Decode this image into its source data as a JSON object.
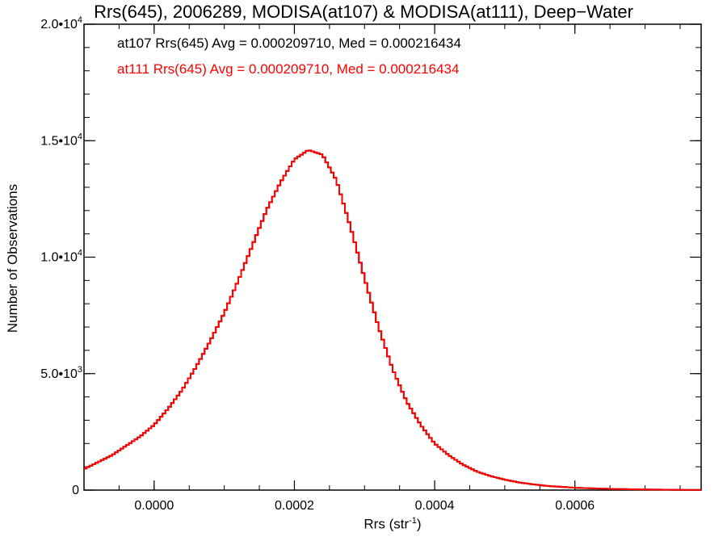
{
  "chart_data": {
    "type": "line",
    "title": "Rrs(645), 2006289, MODISA(at107) & MODISA(at111), Deep−Water",
    "xlabel_main": "Rrs (str",
    "xlabel_sup": "-1",
    "xlabel_end": ")",
    "ylabel": "Number of Observations",
    "xlim": [
      -0.0001,
      0.00078
    ],
    "ylim": [
      0,
      20000
    ],
    "x_ticks": [
      {
        "value": 0.0,
        "label": "0.0000"
      },
      {
        "value": 0.0002,
        "label": "0.0002"
      },
      {
        "value": 0.0004,
        "label": "0.0004"
      },
      {
        "value": 0.0006,
        "label": "0.0006"
      }
    ],
    "y_ticks": [
      {
        "value": 0,
        "label": "0",
        "sup": ""
      },
      {
        "value": 5000,
        "label": "5.0•10",
        "sup": "3"
      },
      {
        "value": 10000,
        "label": "1.0•10",
        "sup": "4"
      },
      {
        "value": 15000,
        "label": "1.5•10",
        "sup": "4"
      },
      {
        "value": 20000,
        "label": "2.0•10",
        "sup": "4"
      }
    ],
    "annotations": [
      {
        "text": "at107 Rrs(645) Avg = 0.000209710, Med = 0.000216434",
        "color": "#000000"
      },
      {
        "text": "at111 Rrs(645) Avg = 0.000209710, Med = 0.000216434",
        "color": "#ff0000"
      }
    ],
    "series": [
      {
        "name": "at107",
        "color": "#000000",
        "x": [
          -0.0001,
          -8e-05,
          -6e-05,
          -4e-05,
          -2e-05,
          0.0,
          2e-05,
          4e-05,
          6e-05,
          8e-05,
          0.0001,
          0.00012,
          0.00014,
          0.00016,
          0.00018,
          0.0002,
          0.00022,
          0.00024,
          0.00026,
          0.00028,
          0.0003,
          0.00032,
          0.00034,
          0.00036,
          0.00038,
          0.0004,
          0.00042,
          0.00044,
          0.00046,
          0.00048,
          0.0005,
          0.00052,
          0.00054,
          0.00056,
          0.00058,
          0.0006,
          0.00062,
          0.00064,
          0.00066,
          0.00068,
          0.0007,
          0.00072,
          0.00074,
          0.00076,
          0.00078
        ],
        "y": [
          900,
          1200,
          1500,
          1900,
          2300,
          2800,
          3500,
          4300,
          5300,
          6400,
          7600,
          9000,
          10500,
          12000,
          13200,
          14200,
          14600,
          14400,
          13300,
          11300,
          9100,
          7000,
          5200,
          3800,
          2800,
          2000,
          1500,
          1100,
          800,
          600,
          450,
          330,
          250,
          180,
          140,
          100,
          80,
          60,
          45,
          35,
          25,
          20,
          15,
          10,
          8
        ]
      },
      {
        "name": "at111",
        "color": "#ff0000",
        "x": [
          -0.0001,
          -8e-05,
          -6e-05,
          -4e-05,
          -2e-05,
          0.0,
          2e-05,
          4e-05,
          6e-05,
          8e-05,
          0.0001,
          0.00012,
          0.00014,
          0.00016,
          0.00018,
          0.0002,
          0.00022,
          0.00024,
          0.00026,
          0.00028,
          0.0003,
          0.00032,
          0.00034,
          0.00036,
          0.00038,
          0.0004,
          0.00042,
          0.00044,
          0.00046,
          0.00048,
          0.0005,
          0.00052,
          0.00054,
          0.00056,
          0.00058,
          0.0006,
          0.00062,
          0.00064,
          0.00066,
          0.00068,
          0.0007,
          0.00072,
          0.00074,
          0.00076,
          0.00078
        ],
        "y": [
          900,
          1200,
          1500,
          1900,
          2300,
          2800,
          3500,
          4300,
          5300,
          6400,
          7600,
          9000,
          10500,
          12000,
          13200,
          14200,
          14600,
          14400,
          13300,
          11300,
          9100,
          7000,
          5200,
          3800,
          2800,
          2000,
          1500,
          1100,
          800,
          600,
          450,
          330,
          250,
          180,
          140,
          100,
          80,
          60,
          45,
          35,
          25,
          20,
          15,
          10,
          8
        ]
      }
    ],
    "grid": false,
    "legend": "none"
  }
}
